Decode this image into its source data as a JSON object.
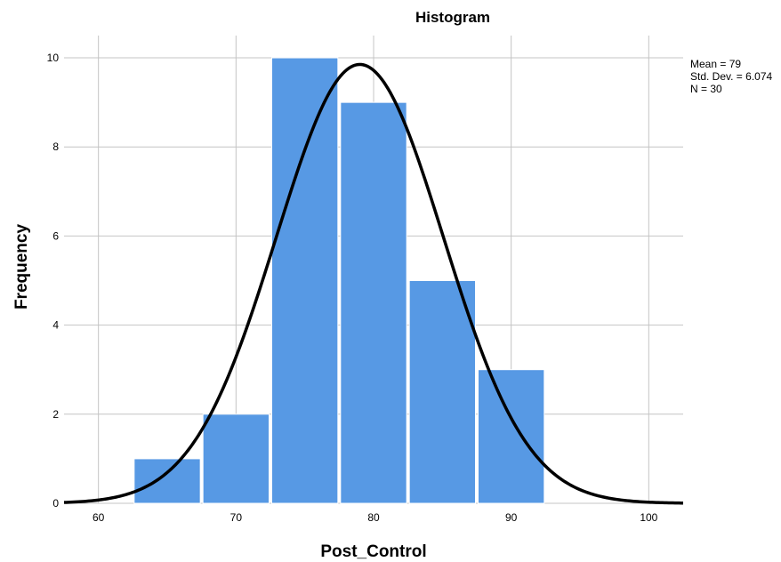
{
  "chart_data": {
    "type": "bar",
    "title": "Histogram",
    "xlabel": "Post_Control",
    "ylabel": "Frequency",
    "bins": [
      {
        "start": 62.5,
        "end": 67.5,
        "count": 1
      },
      {
        "start": 67.5,
        "end": 72.5,
        "count": 2
      },
      {
        "start": 72.5,
        "end": 77.5,
        "count": 10
      },
      {
        "start": 77.5,
        "end": 82.5,
        "count": 9
      },
      {
        "start": 82.5,
        "end": 87.5,
        "count": 5
      },
      {
        "start": 87.5,
        "end": 92.5,
        "count": 3
      }
    ],
    "xlim": [
      57.5,
      102.5
    ],
    "ylim": [
      0,
      10.5
    ],
    "xticks": [
      60,
      70,
      80,
      90,
      100
    ],
    "yticks": [
      0,
      2,
      4,
      6,
      8,
      10
    ],
    "normal_curve": {
      "mean": 79,
      "sd": 6.074,
      "n": 30,
      "bin_width": 5
    },
    "stats": {
      "mean_text": "Mean = 79",
      "sd_text": "Std. Dev. = 6.074",
      "n_text": "N = 30"
    },
    "grid": true,
    "bar_color": "#5799e4",
    "curve_color": "#000000"
  }
}
